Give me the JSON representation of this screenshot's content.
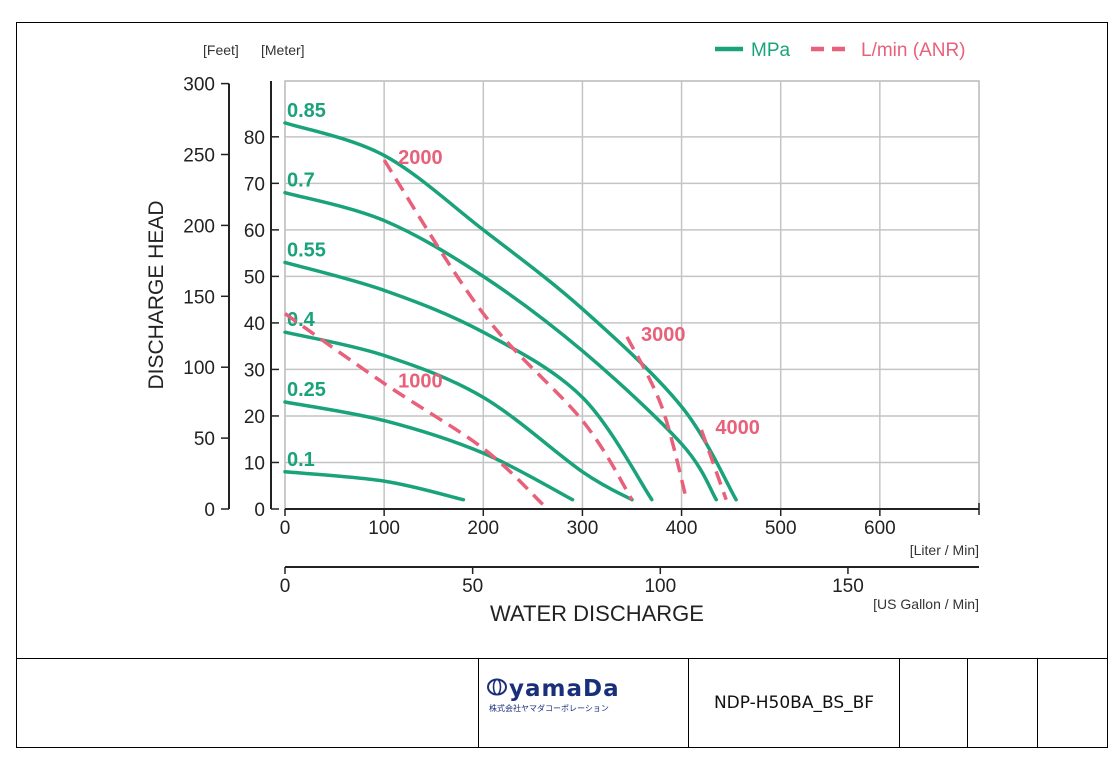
{
  "chart_data": {
    "type": "line",
    "x_axis": {
      "label": "WATER DISCHARGE",
      "unit_label": "[Liter / Min]",
      "ticks": [
        0,
        100,
        200,
        300,
        400,
        500,
        600
      ],
      "range": [
        0,
        700
      ]
    },
    "x2_axis": {
      "unit_label": "[US Gallon / Min]",
      "ticks": [
        0,
        50,
        100,
        150
      ]
    },
    "y_axis": {
      "label": "DISCHARGE HEAD",
      "unit_label": "[Meter]",
      "ticks": [
        0,
        10,
        20,
        30,
        40,
        50,
        60,
        70,
        80
      ],
      "range": [
        0,
        92
      ]
    },
    "y2_axis": {
      "unit_label": "[Feet]",
      "ticks": [
        0,
        50,
        100,
        150,
        200,
        250,
        300
      ]
    },
    "legend": {
      "position": "top-right",
      "items": [
        {
          "label": "MPa",
          "style": "solid",
          "color": "#1aa37a"
        },
        {
          "label": "L/min (ANR)",
          "style": "dashed",
          "color": "#e8607a"
        }
      ]
    },
    "pressure_series": [
      {
        "name": "0.85",
        "points": [
          [
            0,
            83
          ],
          [
            100,
            76
          ],
          [
            200,
            60
          ],
          [
            300,
            43
          ],
          [
            400,
            22
          ],
          [
            455,
            2
          ]
        ]
      },
      {
        "name": "0.7",
        "points": [
          [
            0,
            68
          ],
          [
            100,
            62
          ],
          [
            200,
            50
          ],
          [
            300,
            34
          ],
          [
            400,
            14
          ],
          [
            435,
            2
          ]
        ]
      },
      {
        "name": "0.55",
        "points": [
          [
            0,
            53
          ],
          [
            100,
            47
          ],
          [
            200,
            38
          ],
          [
            300,
            24
          ],
          [
            370,
            2
          ]
        ]
      },
      {
        "name": "0.4",
        "points": [
          [
            0,
            38
          ],
          [
            100,
            33
          ],
          [
            200,
            24
          ],
          [
            300,
            8
          ],
          [
            350,
            2
          ]
        ]
      },
      {
        "name": "0.25",
        "points": [
          [
            0,
            23
          ],
          [
            100,
            19
          ],
          [
            200,
            12
          ],
          [
            290,
            2
          ]
        ]
      },
      {
        "name": "0.1",
        "points": [
          [
            0,
            8
          ],
          [
            100,
            6
          ],
          [
            180,
            2
          ]
        ]
      }
    ],
    "air_series": [
      {
        "name": "1000",
        "points": [
          [
            0,
            42
          ],
          [
            100,
            27
          ],
          [
            200,
            13
          ],
          [
            260,
            1
          ]
        ],
        "label_pos": [
          100,
          27
        ]
      },
      {
        "name": "2000",
        "points": [
          [
            100,
            75
          ],
          [
            200,
            42
          ],
          [
            300,
            19
          ],
          [
            350,
            2
          ]
        ],
        "label_pos": [
          100,
          75
        ]
      },
      {
        "name": "3000",
        "points": [
          [
            345,
            37
          ],
          [
            380,
            22
          ],
          [
            405,
            2
          ]
        ],
        "label_pos": [
          345,
          37
        ]
      },
      {
        "name": "4000",
        "points": [
          [
            420,
            17
          ],
          [
            445,
            2
          ]
        ],
        "label_pos": [
          420,
          17
        ]
      }
    ],
    "grid": true
  },
  "title_block": {
    "brand": "yamaDa",
    "brand_sub": "株式会社ヤマダコーポレーション",
    "doc_id": "NDP-H50BA_BS_BF"
  }
}
